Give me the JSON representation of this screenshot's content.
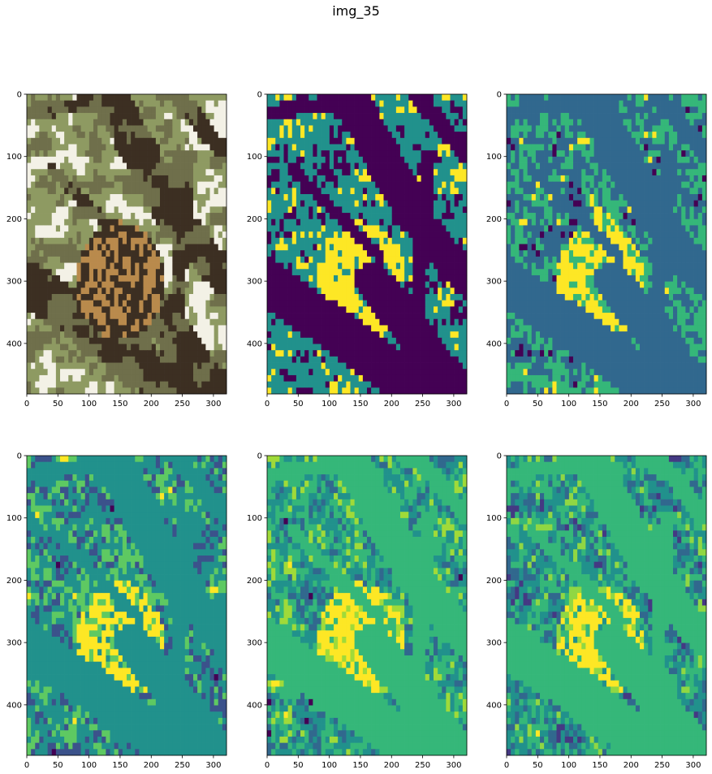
{
  "figure": {
    "title": "img_35"
  },
  "chart_data": [
    {
      "type": "heatmap",
      "panel": "original-photo",
      "title": "",
      "xlim": [
        0,
        321
      ],
      "ylim": [
        481,
        0
      ],
      "xticks": [
        0,
        50,
        100,
        150,
        200,
        250,
        300
      ],
      "yticks": [
        0,
        100,
        200,
        300,
        400
      ],
      "palette": [
        "#f3f1e6",
        "#6f6f4b",
        "#b98a4c",
        "#3c2f22",
        "#8e9a62"
      ]
    },
    {
      "type": "heatmap",
      "panel": "segmentation-k3",
      "title": "",
      "xlim": [
        0,
        321
      ],
      "ylim": [
        481,
        0
      ],
      "xticks": [
        0,
        50,
        100,
        150,
        200,
        250,
        300
      ],
      "yticks": [
        0,
        100,
        200,
        300,
        400
      ],
      "palette": [
        "#440154",
        "#21918c",
        "#fde725"
      ]
    },
    {
      "type": "heatmap",
      "panel": "segmentation-k4",
      "title": "",
      "xlim": [
        0,
        321
      ],
      "ylim": [
        481,
        0
      ],
      "xticks": [
        0,
        50,
        100,
        150,
        200,
        250,
        300
      ],
      "yticks": [
        0,
        100,
        200,
        300,
        400
      ],
      "palette": [
        "#440154",
        "#31688e",
        "#35b779",
        "#fde725"
      ]
    },
    {
      "type": "heatmap",
      "panel": "segmentation-k5",
      "title": "",
      "xlim": [
        0,
        321
      ],
      "ylim": [
        481,
        0
      ],
      "xticks": [
        0,
        50,
        100,
        150,
        200,
        250,
        300
      ],
      "yticks": [
        0,
        100,
        200,
        300,
        400
      ],
      "palette": [
        "#440154",
        "#3b528b",
        "#21918c",
        "#5ec962",
        "#fde725"
      ]
    },
    {
      "type": "heatmap",
      "panel": "segmentation-k6",
      "title": "",
      "xlim": [
        0,
        321
      ],
      "ylim": [
        481,
        0
      ],
      "xticks": [
        0,
        50,
        100,
        150,
        200,
        250,
        300
      ],
      "yticks": [
        0,
        100,
        200,
        300,
        400
      ],
      "palette": [
        "#440154",
        "#31688e",
        "#21918c",
        "#35b779",
        "#a0da39",
        "#fde725"
      ]
    },
    {
      "type": "heatmap",
      "panel": "segmentation-k7",
      "title": "",
      "xlim": [
        0,
        321
      ],
      "ylim": [
        481,
        0
      ],
      "xticks": [
        0,
        50,
        100,
        150,
        200,
        250,
        300
      ],
      "yticks": [
        0,
        100,
        200,
        300,
        400
      ],
      "palette": [
        "#440154",
        "#443983",
        "#31688e",
        "#21918c",
        "#35b779",
        "#90d743",
        "#fde725"
      ]
    }
  ]
}
